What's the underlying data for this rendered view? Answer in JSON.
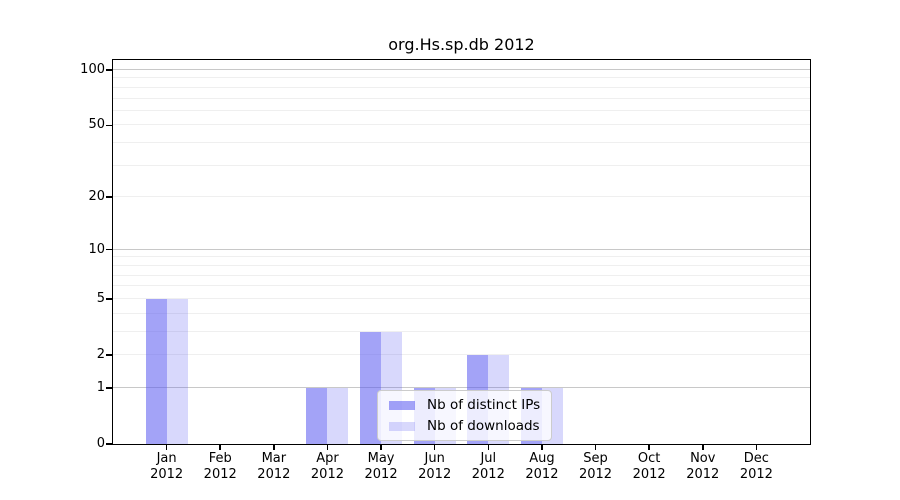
{
  "title": "org.Hs.sp.db 2012",
  "chart_data": {
    "type": "bar",
    "title": "org.Hs.sp.db 2012",
    "x_axis": {
      "months": [
        "Jan",
        "Feb",
        "Mar",
        "Apr",
        "May",
        "Jun",
        "Jul",
        "Aug",
        "Sep",
        "Oct",
        "Nov",
        "Dec"
      ],
      "year": "2012"
    },
    "y_axis": {
      "tick_values": [
        0,
        1,
        2,
        5,
        10,
        20,
        50,
        100
      ],
      "scale": "log10(1+y)",
      "major_grid_values": [
        1,
        10,
        100
      ],
      "minor_grid_values": [
        2,
        3,
        4,
        5,
        6,
        7,
        8,
        9,
        20,
        30,
        40,
        50,
        60,
        70,
        80,
        90
      ]
    },
    "series": [
      {
        "name": "Nb of distinct IPs",
        "color": "rgba(88,88,240,0.55)",
        "values": [
          5,
          0,
          0,
          1,
          3,
          1,
          2,
          1,
          0,
          0,
          0,
          0
        ]
      },
      {
        "name": "Nb of downloads",
        "color": "rgba(88,88,240,0.23)",
        "values": [
          5,
          0,
          0,
          1,
          3,
          1,
          2,
          1,
          0,
          0,
          0,
          0
        ]
      }
    ],
    "legend_position": "inside-bottom-center",
    "grid": true,
    "colors": {
      "major_grid": "#c8c8c8",
      "minor_grid": "#efefef",
      "axis": "#000000"
    }
  }
}
